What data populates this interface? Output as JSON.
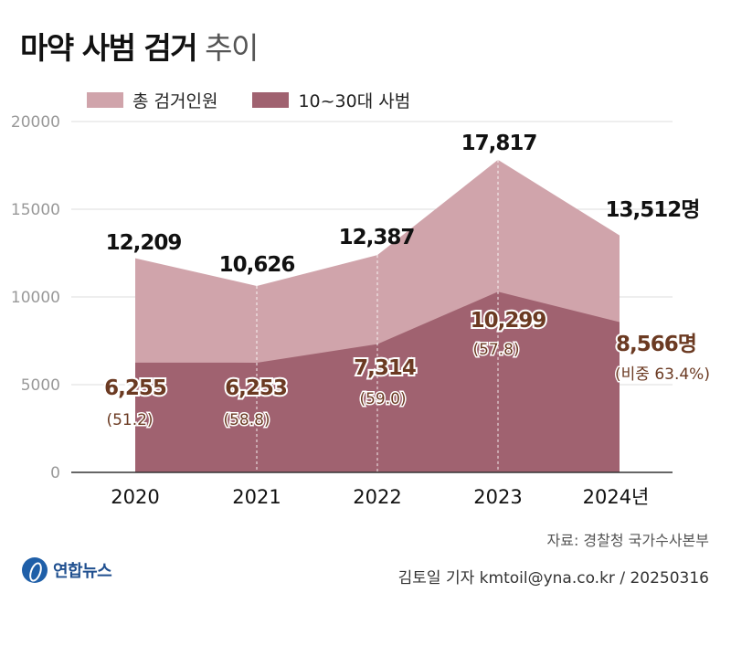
{
  "title": {
    "bold": "마약 사범 검거",
    "light": "추이"
  },
  "colors": {
    "total": "#d0a4ab",
    "youth": "#a06270",
    "total_text": "#111111",
    "youth_text": "#6b3a22",
    "axis_text": "#999999",
    "grid": "#dddddd"
  },
  "legend": [
    {
      "label": "총 검거인원",
      "color": "#d0a4ab"
    },
    {
      "label": "10~30대 사범",
      "color": "#a06270"
    }
  ],
  "chart_data": {
    "type": "area",
    "categories": [
      "2020",
      "2021",
      "2022",
      "2023",
      "2024년"
    ],
    "series": [
      {
        "name": "총 검거인원",
        "values": [
          12209,
          10626,
          12387,
          17817,
          13512
        ]
      },
      {
        "name": "10~30대 사범",
        "values": [
          6255,
          6253,
          7314,
          10299,
          8566
        ]
      }
    ],
    "total_labels": [
      "12,209",
      "10,626",
      "12,387",
      "17,817",
      "13,512명"
    ],
    "youth_labels": [
      "6,255",
      "6,253",
      "7,314",
      "10,299",
      "8,566명"
    ],
    "share_labels": [
      "(51.2)",
      "(58.8)",
      "(59.0)",
      "(57.8)",
      "(비중 63.4%)"
    ],
    "y_ticks": [
      "20000",
      "15000",
      "10000",
      "5000",
      "0"
    ],
    "ylim": [
      0,
      20000
    ],
    "grid": true,
    "legend_position": "top-left"
  },
  "source": "자료: 경찰청 국가수사본부",
  "reporter": "김토일 기자 kmtoil@yna.co.kr / 20250316",
  "logo_text": "연합뉴스"
}
